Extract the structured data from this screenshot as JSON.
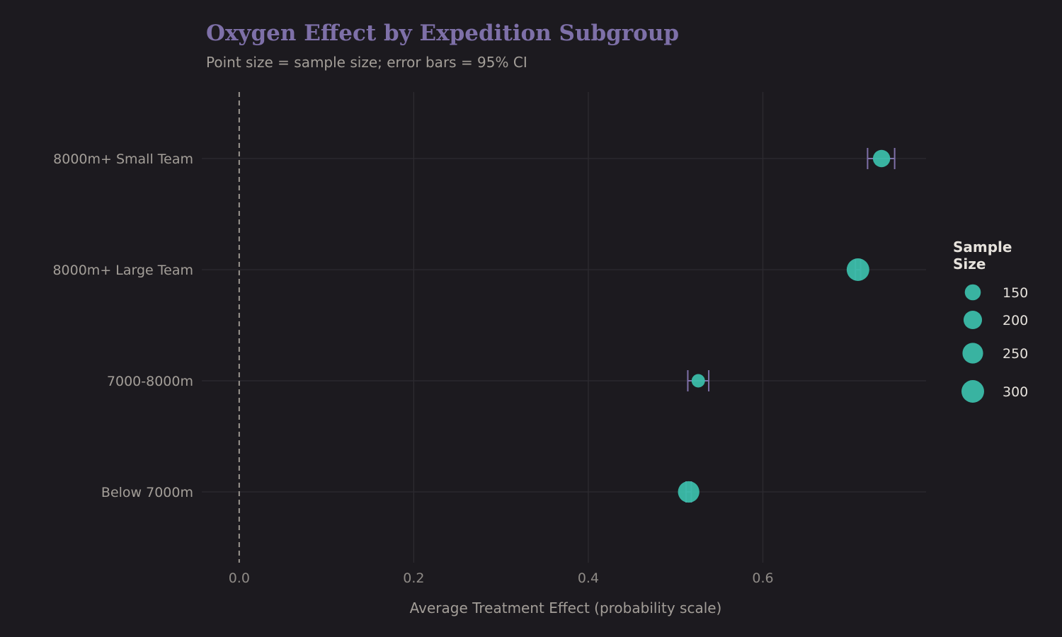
{
  "chart_data": {
    "type": "scatter",
    "title": "Oxygen Effect by Expedition Subgroup",
    "subtitle": "Point size = sample size; error bars = 95% CI",
    "xlabel": "Average Treatment Effect (probability scale)",
    "ylabel": "",
    "xlim": [
      -0.038,
      0.787
    ],
    "x_ticks": [
      0.0,
      0.2,
      0.4,
      0.6
    ],
    "x_tick_labels": [
      "0.0",
      "0.2",
      "0.4",
      "0.6"
    ],
    "reference_line": {
      "x": 0.0,
      "style": "dashed"
    },
    "categories": [
      "8000m+ Small Team",
      "8000m+ Large Team",
      "7000-8000m",
      "Below 7000m"
    ],
    "points": [
      {
        "label": "8000m+ Small Team",
        "estimate": 0.736,
        "ci_low": 0.72,
        "ci_high": 0.751,
        "n": 175
      },
      {
        "label": "8000m+ Large Team",
        "estimate": 0.709,
        "ci_low": 0.706,
        "ci_high": 0.712,
        "n": 300
      },
      {
        "label": "7000-8000m",
        "estimate": 0.526,
        "ci_low": 0.514,
        "ci_high": 0.538,
        "n": 105
      },
      {
        "label": "Below 7000m",
        "estimate": 0.515,
        "ci_low": 0.512,
        "ci_high": 0.518,
        "n": 270
      }
    ],
    "legend": {
      "title_lines": [
        "Sample",
        "Size"
      ],
      "position": "right",
      "entries": [
        150,
        200,
        250,
        300
      ]
    },
    "colors": {
      "background": "#1c1a1f",
      "point": "#3bbca9",
      "errorbar": "#7e70a8",
      "grid": "#2d2b30",
      "reference": "#9a958f"
    }
  }
}
